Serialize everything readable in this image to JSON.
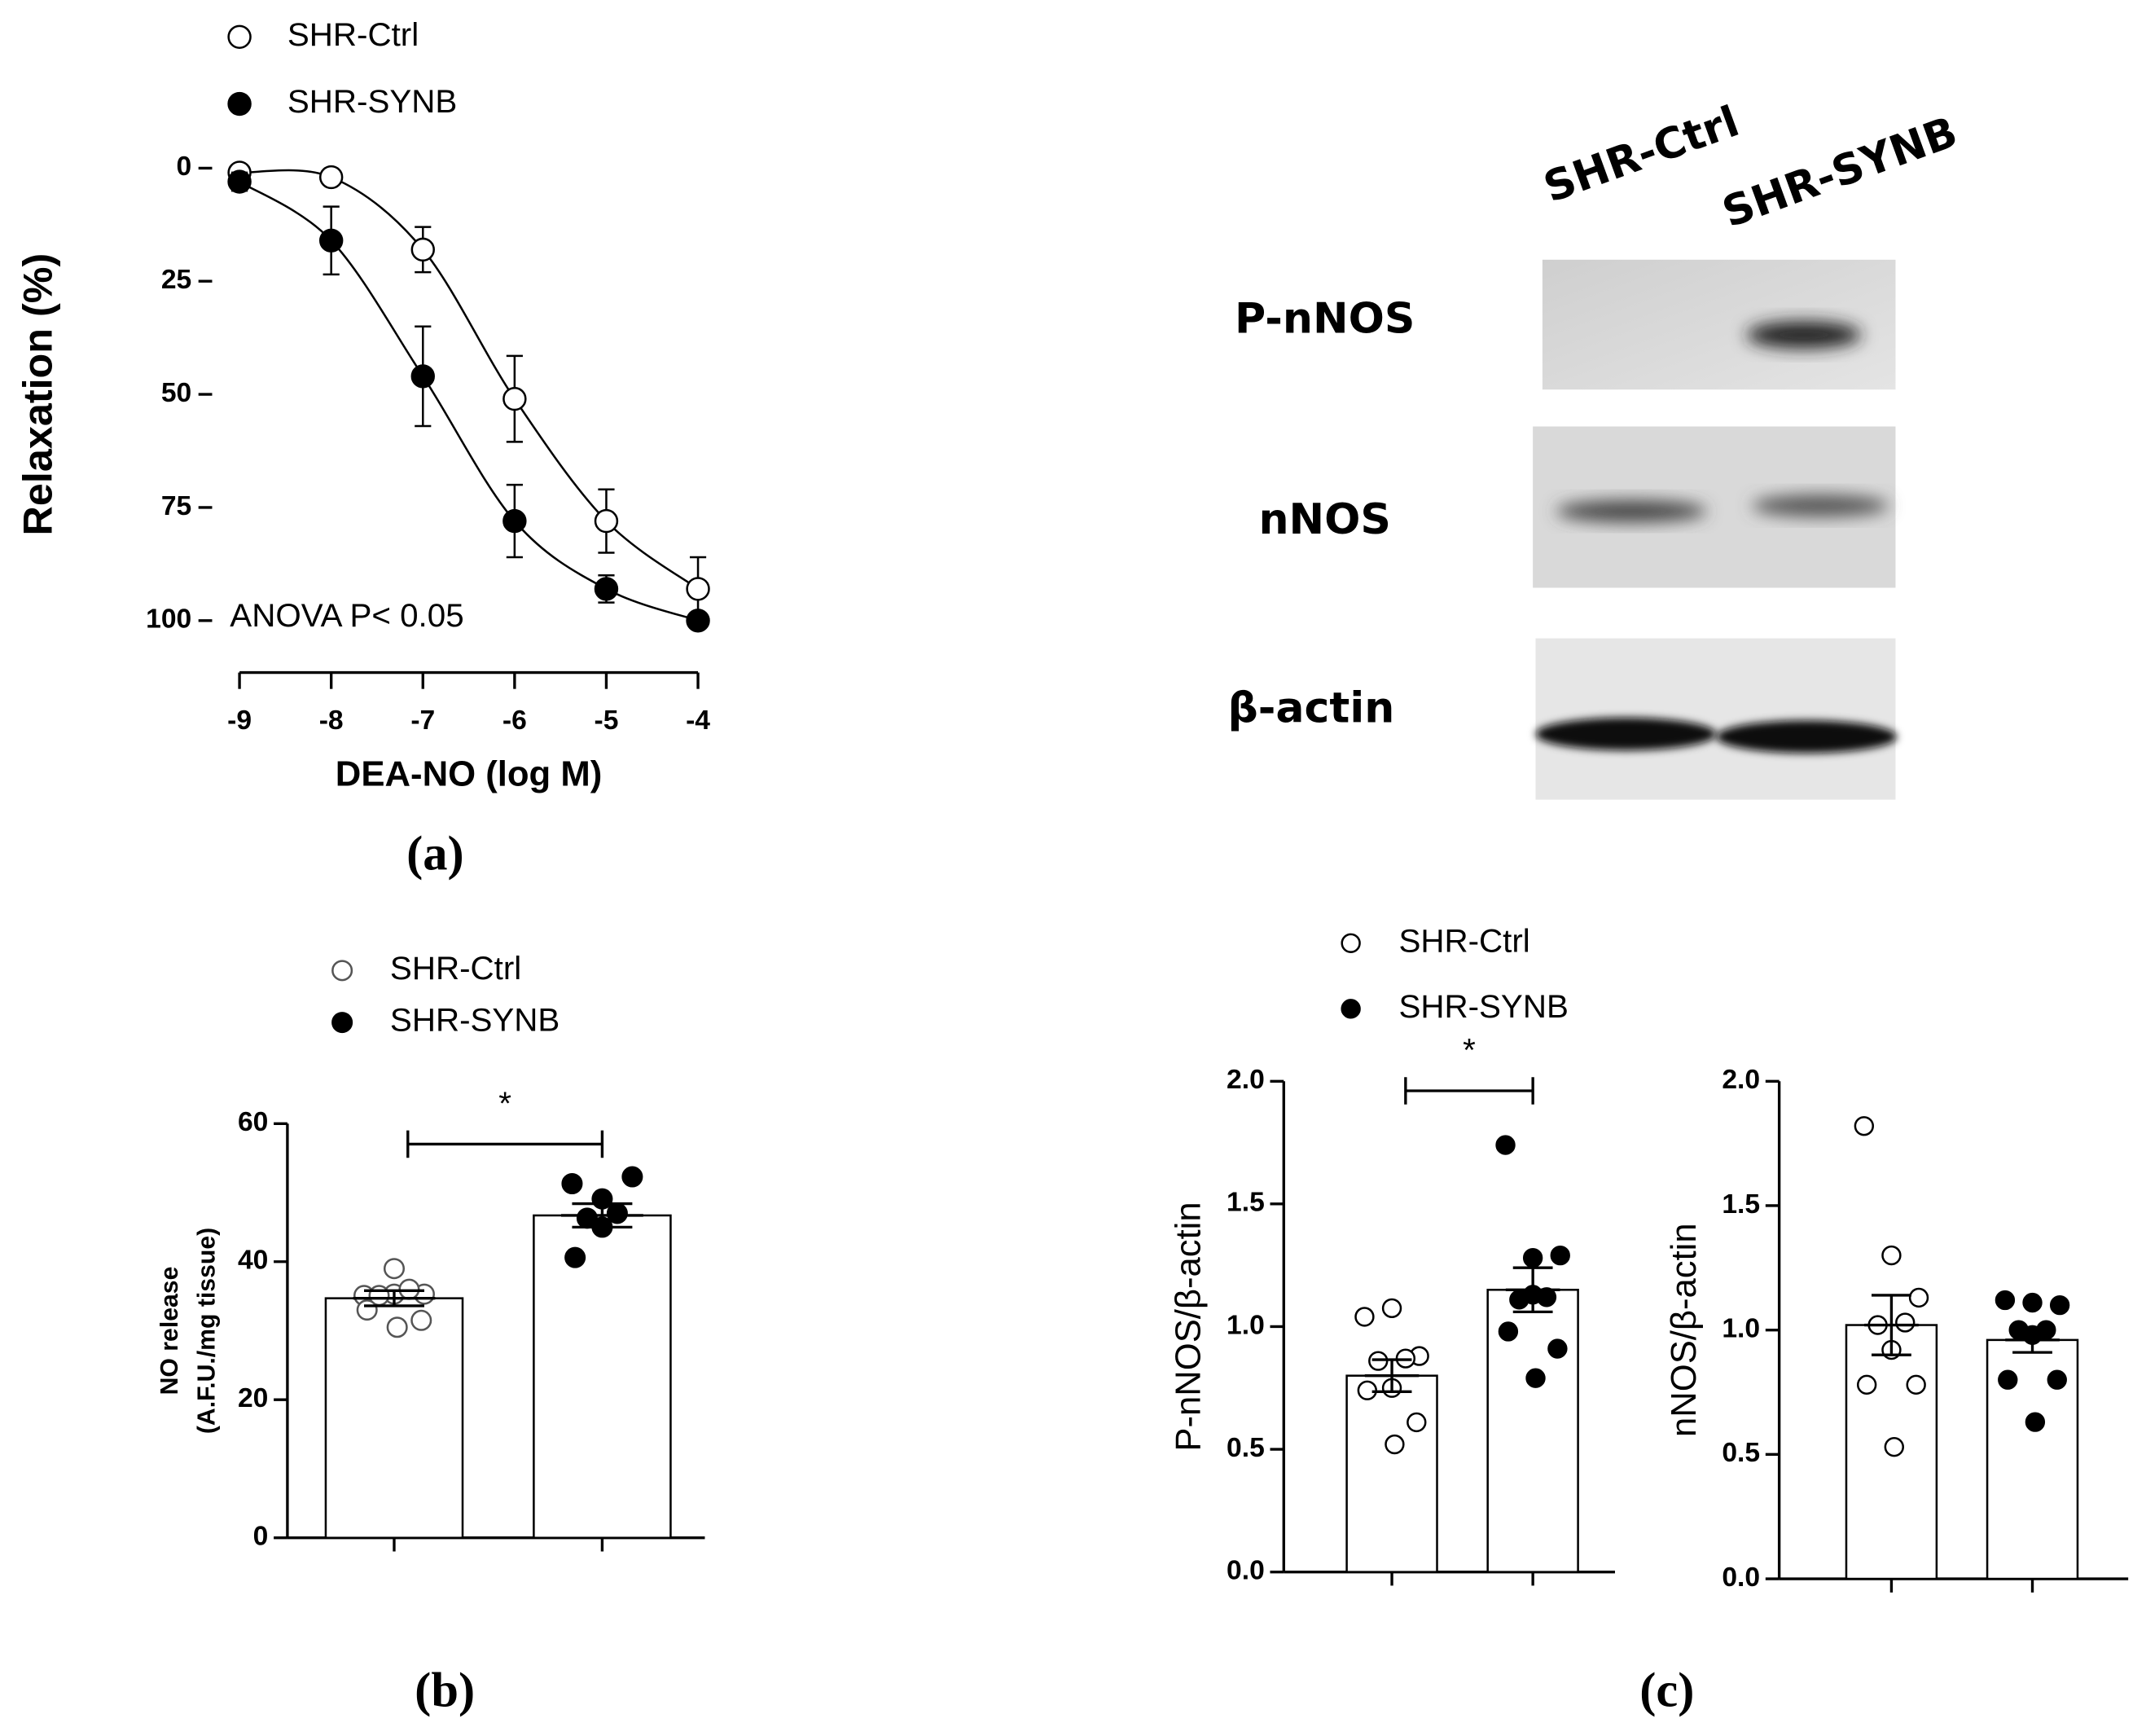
{
  "chart_data": [
    {
      "type": "line",
      "x": [
        -9,
        -8,
        -7,
        -6,
        -5,
        -4
      ],
      "xlim": [
        -9,
        -4
      ],
      "xticks": [
        -9,
        -8,
        -7,
        -6,
        -5,
        -4
      ],
      "ylim": [
        0,
        100
      ],
      "yticks": [
        0,
        25,
        50,
        75,
        100
      ],
      "y_inverted": true,
      "ylabel": "Relaxation  (%)",
      "xlabel": "DEA-NO (log M)",
      "annotation": "ANOVA P< 0.05",
      "series": [
        {
          "name": "SHR-Ctrl",
          "color": "#000000",
          "fill": "#ffffff",
          "values": [
            1,
            2,
            18,
            51,
            78,
            93
          ],
          "errors": [
            0.5,
            0.5,
            5,
            9.5,
            7,
            7
          ]
        },
        {
          "name": "SHR-SYNB",
          "color": "#000000",
          "fill": "#000000",
          "values": [
            3,
            16,
            46,
            78,
            93,
            100
          ],
          "errors": [
            2,
            7.5,
            11,
            8,
            3,
            1
          ]
        }
      ]
    },
    {
      "type": "bar",
      "ylim": [
        0,
        60
      ],
      "yticks": [
        0,
        20,
        40,
        60
      ],
      "ylabel": [
        "NO release",
        "(A.F.U./mg tissue)"
      ],
      "significance": "*",
      "series": [
        {
          "name": "SHR-Ctrl",
          "color": "#555555",
          "fill": "#ffffff",
          "value": 34.7,
          "error": 1.1,
          "points": [
            35.1,
            35.3,
            35.3,
            36,
            35.1,
            39,
            33,
            31.5,
            30.5
          ]
        },
        {
          "name": "SHR-SYNB",
          "color": "#000000",
          "fill": "#000000",
          "value": 46.7,
          "error": 1.7,
          "points": [
            51.3,
            49.1,
            52.3,
            47,
            46.3,
            45,
            40.6
          ]
        }
      ]
    },
    {
      "type": "bar",
      "ylim": [
        0,
        2
      ],
      "yticks": [
        {
          "value": 0,
          "label": "0.0"
        },
        {
          "value": 0.5,
          "label": "0.5"
        },
        {
          "value": 1,
          "label": "1.0"
        },
        {
          "value": 1.5,
          "label": "1.5"
        },
        {
          "value": 2,
          "label": "2.0"
        }
      ],
      "ylabel": [
        "P-nNOS/β-actin"
      ],
      "significance": "*",
      "series": [
        {
          "name": "SHR-Ctrl",
          "color": "#000000",
          "fill": "#ffffff",
          "value": 0.8,
          "error": 0.065,
          "points": [
            1.04,
            1.075,
            0.88,
            0.87,
            0.86,
            0.75,
            0.74,
            0.61,
            0.52
          ]
        },
        {
          "name": "SHR-SYNB",
          "color": "#000000",
          "fill": "#000000",
          "value": 1.15,
          "error": 0.09,
          "points": [
            1.74,
            1.28,
            1.29,
            1.12,
            1.11,
            1.13,
            0.98,
            0.91,
            0.79
          ]
        }
      ]
    },
    {
      "type": "bar",
      "ylim": [
        0,
        2
      ],
      "yticks": [
        {
          "value": 0,
          "label": "0.0"
        },
        {
          "value": 0.5,
          "label": "0.5"
        },
        {
          "value": 1,
          "label": "1.0"
        },
        {
          "value": 1.5,
          "label": "1.5"
        },
        {
          "value": 2,
          "label": "2.0"
        }
      ],
      "ylabel": [
        "nNOS/β-actin"
      ],
      "series": [
        {
          "color": "#000000",
          "fill": "#ffffff",
          "value": 1.02,
          "error": 0.12,
          "points": [
            1.82,
            1.3,
            1.13,
            1.03,
            1.02,
            0.92,
            0.78,
            0.78,
            0.53
          ]
        },
        {
          "color": "#000000",
          "fill": "#000000",
          "value": 0.96,
          "error": 0.05,
          "points": [
            1.12,
            1.11,
            1.1,
            1.0,
            1.0,
            0.98,
            0.8,
            0.8,
            0.63
          ]
        }
      ]
    }
  ],
  "blot": {
    "lanes": [
      "SHR-Ctrl",
      "SHR-SYNB"
    ],
    "rows": [
      "P-nNOS",
      "nNOS",
      "β-actin"
    ]
  },
  "panel_labels": [
    "(a)",
    "(b)",
    "(c)"
  ]
}
